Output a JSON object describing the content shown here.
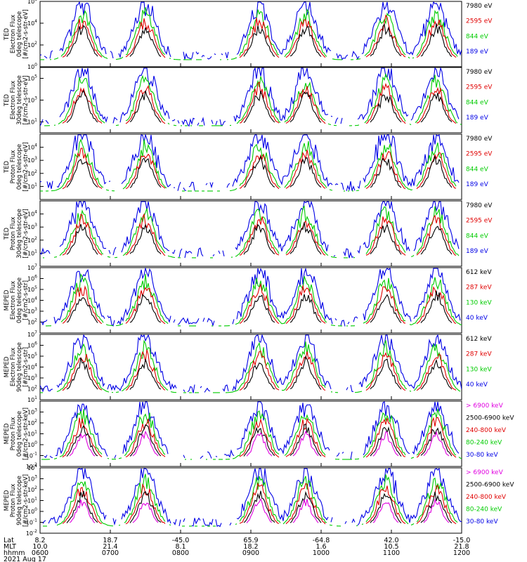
{
  "figure": {
    "x_axis": {
      "row_labels": [
        "Lat",
        "MLT",
        "hhmm"
      ],
      "date": "2021 Aug 17",
      "ticks": [
        {
          "lat": "8.2",
          "mlt": "10.0",
          "hhmm": "0600"
        },
        {
          "lat": "18.7",
          "mlt": "21.4",
          "hhmm": "0700"
        },
        {
          "lat": "-45.0",
          "mlt": "8.1",
          "hhmm": "0800"
        },
        {
          "lat": "65.9",
          "mlt": "18.2",
          "hhmm": "0900"
        },
        {
          "lat": "-64.8",
          "mlt": "1.6",
          "hhmm": "1000"
        },
        {
          "lat": "42.0",
          "mlt": "10.5",
          "hhmm": "1100"
        },
        {
          "lat": "-15.0",
          "mlt": "21.8",
          "hhmm": "1200"
        }
      ]
    }
  },
  "chart_data": [
    {
      "type": "line",
      "ylabel": [
        "TED",
        "Electron Flux",
        "0deg telescope",
        "[#/cm2-s-str-eV]"
      ],
      "y_log": true,
      "ylim_exp": [
        0,
        6
      ],
      "ytick_exps": [
        0,
        2,
        4,
        6
      ],
      "series": [
        {
          "name": "7980 eV",
          "color": "#000000"
        },
        {
          "name": "2595 eV",
          "color": "#e00000"
        },
        {
          "name": "844 eV",
          "color": "#00cc00"
        },
        {
          "name": "189 eV",
          "color": "#0000e6"
        }
      ]
    },
    {
      "type": "line",
      "ylabel": [
        "TED",
        "Electron Flux",
        "30deg telescope",
        "[#/cm2-s-str-eV]"
      ],
      "y_log": true,
      "ylim_exp": [
        0,
        6
      ],
      "ytick_exps": [
        1,
        3,
        5
      ],
      "series": [
        {
          "name": "7980 eV",
          "color": "#000000"
        },
        {
          "name": "2595 eV",
          "color": "#e00000"
        },
        {
          "name": "844 eV",
          "color": "#00cc00"
        },
        {
          "name": "189 eV",
          "color": "#0000e6"
        }
      ]
    },
    {
      "type": "line",
      "ylabel": [
        "TED",
        "Proton Flux",
        "0deg telescope",
        "[#/cm2-s-str-eV]"
      ],
      "y_log": true,
      "ylim_exp": [
        0,
        5
      ],
      "ytick_exps": [
        1,
        2,
        3,
        4
      ],
      "series": [
        {
          "name": "7980 eV",
          "color": "#000000"
        },
        {
          "name": "2595 eV",
          "color": "#e00000"
        },
        {
          "name": "844 eV",
          "color": "#00cc00"
        },
        {
          "name": "189 eV",
          "color": "#0000e6"
        }
      ]
    },
    {
      "type": "line",
      "ylabel": [
        "TED",
        "Proton Flux",
        "30deg telescope",
        "[#/cm2-s-str-eV]"
      ],
      "y_log": true,
      "ylim_exp": [
        0,
        5
      ],
      "ytick_exps": [
        1,
        2,
        3,
        4
      ],
      "series": [
        {
          "name": "7980 eV",
          "color": "#000000"
        },
        {
          "name": "2595 eV",
          "color": "#e00000"
        },
        {
          "name": "844 eV",
          "color": "#00cc00"
        },
        {
          "name": "189 eV",
          "color": "#0000e6"
        }
      ]
    },
    {
      "type": "line",
      "ylabel": [
        "MEPED",
        "Electron Flux",
        "0deg telescope",
        "[#/cm2-s-str]"
      ],
      "y_log": true,
      "ylim_exp": [
        1,
        7
      ],
      "ytick_exps": [
        2,
        3,
        4,
        5,
        6,
        7
      ],
      "series": [
        {
          "name": "612 keV",
          "color": "#000000"
        },
        {
          "name": "287 keV",
          "color": "#e00000"
        },
        {
          "name": "130 keV",
          "color": "#00cc00"
        },
        {
          "name": "40 keV",
          "color": "#0000e6"
        }
      ]
    },
    {
      "type": "line",
      "ylabel": [
        "MEPED",
        "Electron Flux",
        "90deg telescope",
        "[#/cm2-s-str]"
      ],
      "y_log": true,
      "ylim_exp": [
        1,
        7
      ],
      "ytick_exps": [
        1,
        2,
        3,
        4,
        5,
        6,
        7
      ],
      "series": [
        {
          "name": "612 keV",
          "color": "#000000"
        },
        {
          "name": "287 keV",
          "color": "#e00000"
        },
        {
          "name": "130 keV",
          "color": "#00cc00"
        },
        {
          "name": "40 keV",
          "color": "#0000e6"
        }
      ]
    },
    {
      "type": "line",
      "ylabel": [
        "MEPED",
        "Proton Flux",
        "0deg telescope",
        "[#/cm2-s-str-keV]"
      ],
      "y_log": true,
      "ylim_exp": [
        -2,
        4
      ],
      "ytick_exps": [
        -2,
        -1,
        0,
        1,
        2,
        3
      ],
      "series": [
        {
          "name": "> 6900 keV",
          "color": "#e000e0"
        },
        {
          "name": "2500-6900 keV",
          "color": "#000000"
        },
        {
          "name": "240-800 keV",
          "color": "#e00000"
        },
        {
          "name": "80-240 keV",
          "color": "#00cc00"
        },
        {
          "name": "30-80 keV",
          "color": "#0000e6"
        }
      ]
    },
    {
      "type": "line",
      "ylabel": [
        "MEPED",
        "Proton Flux",
        "90deg telescope",
        "[#/cm2-s-str-keV]"
      ],
      "y_log": true,
      "ylim_exp": [
        -2,
        4
      ],
      "ytick_exps": [
        -2,
        -1,
        0,
        1,
        2,
        3,
        4
      ],
      "series": [
        {
          "name": "> 6900 keV",
          "color": "#e000e0"
        },
        {
          "name": "2500-6900 keV",
          "color": "#000000"
        },
        {
          "name": "240-800 keV",
          "color": "#e00000"
        },
        {
          "name": "80-240 keV",
          "color": "#00cc00"
        },
        {
          "name": "30-80 keV",
          "color": "#0000e6"
        }
      ]
    }
  ]
}
